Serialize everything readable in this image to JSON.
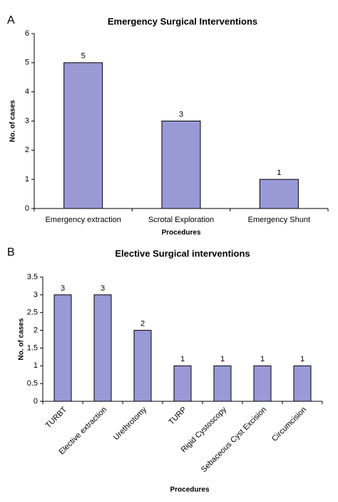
{
  "chart_data": [
    {
      "type": "bar",
      "panel_label": "A",
      "title": "Emergency Surgical Interventions",
      "xlabel": "Procedures",
      "ylabel": "No. of cases",
      "categories": [
        "Emergency extraction",
        "Scrotal Exploration",
        "Emergency Shunt"
      ],
      "values": [
        5,
        3,
        1
      ],
      "color": "#9999d6",
      "ylim": [
        0,
        6
      ],
      "yticks": [
        0,
        1,
        2,
        3,
        4,
        5,
        6
      ]
    },
    {
      "type": "bar",
      "panel_label": "B",
      "title": "Elective Surgical interventions",
      "xlabel": "Procedures",
      "ylabel": "No. of cases",
      "categories": [
        "TURBT",
        "Elective extraction",
        "Urethrotomy",
        "TURP",
        "Rigid Cystoscopy",
        "Sebaceous Cyst Excision",
        "Circumcision"
      ],
      "values": [
        3,
        3,
        2,
        1,
        1,
        1,
        1
      ],
      "color": "#9999d6",
      "ylim": [
        0,
        3.5
      ],
      "yticks": [
        0,
        0.5,
        1,
        1.5,
        2,
        2.5,
        3,
        3.5
      ]
    }
  ]
}
